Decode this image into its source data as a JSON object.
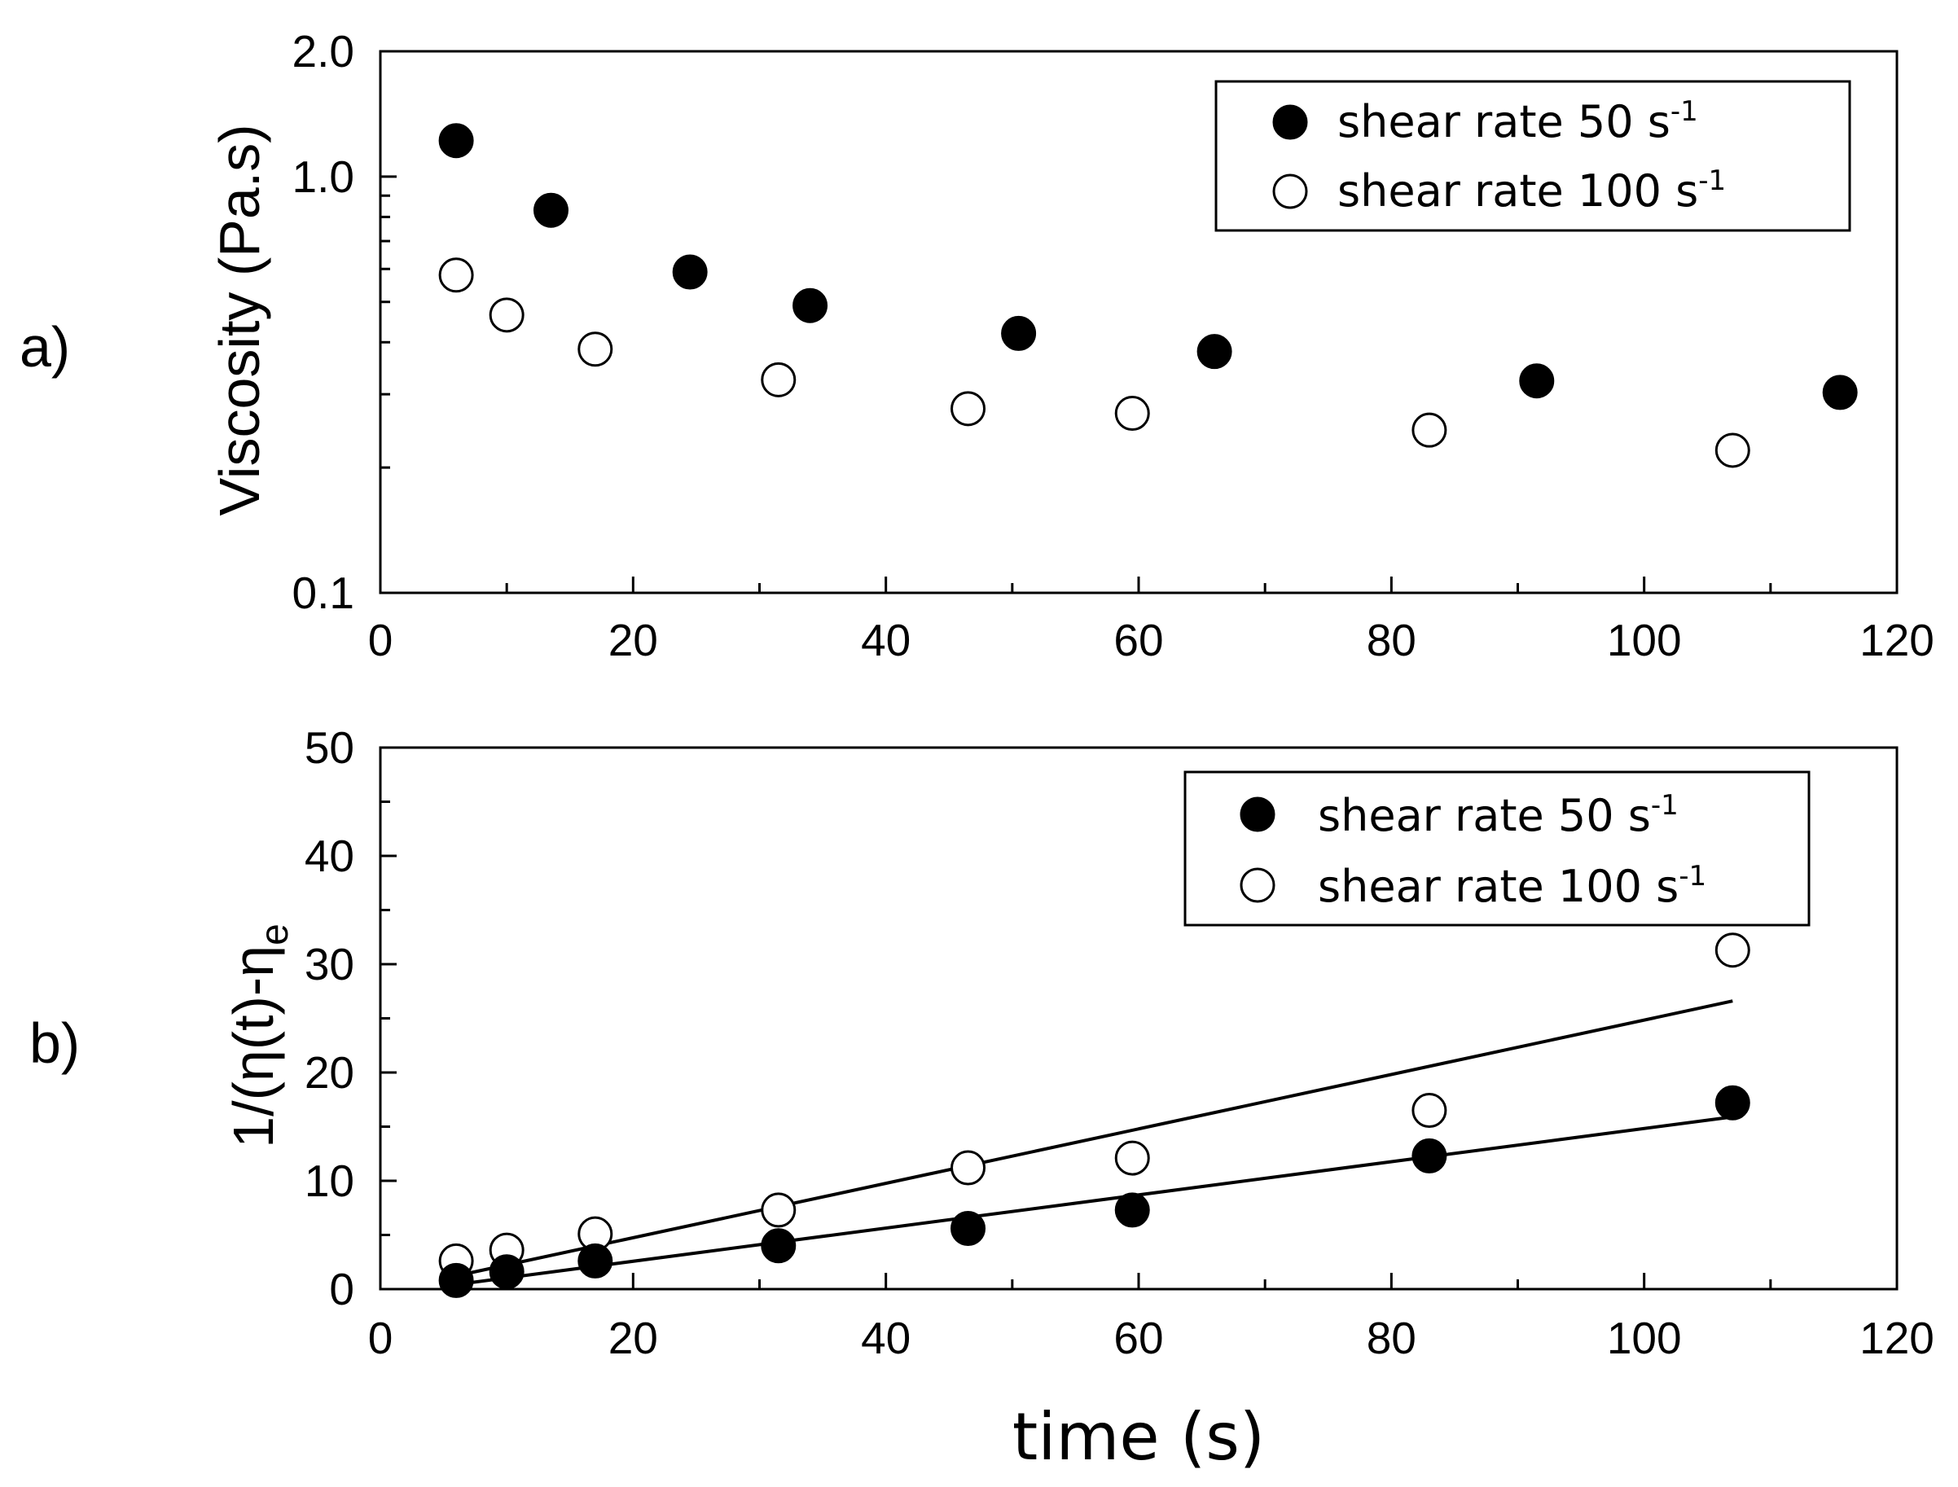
{
  "chart_data": [
    {
      "type": "scatter",
      "panel_label": "a)",
      "ylabel": "Viscosity (Pa.s)",
      "yscale": "log",
      "xlim": [
        0,
        120
      ],
      "ylim": [
        0.1,
        2.0
      ],
      "xticks": [
        "0",
        "20",
        "40",
        "60",
        "80",
        "100",
        "120"
      ],
      "yticks": [
        "0.1",
        "1.0",
        "2.0"
      ],
      "legend": {
        "position": "top-right",
        "entries": [
          {
            "text": "shear rate 50 s",
            "sup": "-1"
          },
          {
            "text": "shear rate 100 s",
            "sup": "-1"
          }
        ]
      },
      "series": [
        {
          "name": "shear rate 50 s-1",
          "marker": "filled",
          "x": [
            6,
            13.5,
            24.5,
            34,
            50.5,
            66,
            91.5,
            115.5
          ],
          "y": [
            1.22,
            0.83,
            0.59,
            0.49,
            0.42,
            0.38,
            0.323,
            0.303
          ]
        },
        {
          "name": "shear rate 100 s-1",
          "marker": "open",
          "x": [
            6,
            10,
            17,
            31.5,
            46.5,
            59.5,
            83,
            107
          ],
          "y": [
            0.58,
            0.465,
            0.385,
            0.325,
            0.277,
            0.27,
            0.246,
            0.22
          ]
        }
      ]
    },
    {
      "type": "scatter",
      "panel_label": "b)",
      "ylabel": "1/(η(t)-η",
      "ylabel_sub": "e",
      "xlabel": "time (s)",
      "xlim": [
        0,
        120
      ],
      "ylim": [
        0,
        50
      ],
      "xticks": [
        "0",
        "20",
        "40",
        "60",
        "80",
        "100",
        "120"
      ],
      "yticks": [
        "0",
        "10",
        "20",
        "30",
        "40",
        "50"
      ],
      "legend": {
        "position": "top-right",
        "entries": [
          {
            "text": "shear rate 50 s",
            "sup": "-1"
          },
          {
            "text": "shear rate 100 s",
            "sup": "-1"
          }
        ]
      },
      "series": [
        {
          "name": "shear rate 50 s-1",
          "marker": "filled",
          "x": [
            6,
            10,
            17,
            31.5,
            46.5,
            59.5,
            83,
            107
          ],
          "y": [
            0.8,
            1.6,
            2.6,
            4.0,
            5.6,
            7.3,
            12.3,
            17.2
          ],
          "fit": {
            "x": [
              5.5,
              107
            ],
            "y": [
              0.35,
              15.9
            ]
          }
        },
        {
          "name": "shear rate 100 s-1",
          "marker": "open",
          "x": [
            6,
            10,
            17,
            31.5,
            46.5,
            59.5,
            83,
            107
          ],
          "y": [
            2.6,
            3.6,
            5.1,
            7.3,
            11.2,
            12.1,
            16.5,
            31.3
          ],
          "fit": {
            "x": [
              5.5,
              107
            ],
            "y": [
              1.1,
              26.6
            ]
          }
        }
      ]
    }
  ]
}
